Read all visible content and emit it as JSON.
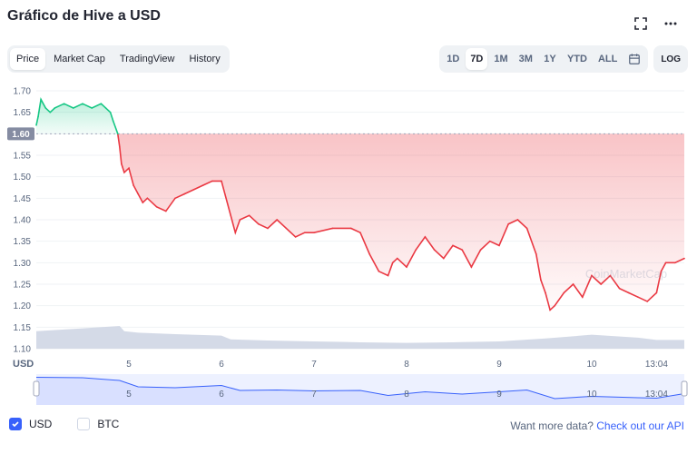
{
  "title": "Gráfico de Hive a USD",
  "header_icons": [
    "fullscreen-icon",
    "more-icon"
  ],
  "tabs": [
    {
      "label": "Price",
      "active": true
    },
    {
      "label": "Market Cap",
      "active": false
    },
    {
      "label": "TradingView",
      "active": false
    },
    {
      "label": "History",
      "active": false
    }
  ],
  "ranges": [
    {
      "label": "1D",
      "active": false
    },
    {
      "label": "7D",
      "active": true
    },
    {
      "label": "1M",
      "active": false
    },
    {
      "label": "3M",
      "active": false
    },
    {
      "label": "1Y",
      "active": false
    },
    {
      "label": "YTD",
      "active": false
    },
    {
      "label": "ALL",
      "active": false
    }
  ],
  "log_label": "LOG",
  "currencies": [
    {
      "label": "USD",
      "checked": true
    },
    {
      "label": "BTC",
      "checked": false
    }
  ],
  "api_note": "Want more data?",
  "api_link": "Check out our API",
  "colors": {
    "up": "#16c784",
    "down": "#ea3943",
    "accent": "#3861fb",
    "volume": "#cfd6e4"
  },
  "chart_data": {
    "type": "line",
    "ylabel": "USD",
    "ylim": [
      1.1,
      1.7
    ],
    "yticks": [
      1.1,
      1.15,
      1.2,
      1.25,
      1.3,
      1.35,
      1.4,
      1.45,
      1.5,
      1.55,
      1.6,
      1.65,
      1.7
    ],
    "xlim": [
      4.0,
      11.0
    ],
    "xticks": [
      {
        "value": 5,
        "label": "5"
      },
      {
        "value": 6,
        "label": "6"
      },
      {
        "value": 7,
        "label": "7"
      },
      {
        "value": 8,
        "label": "8"
      },
      {
        "value": 9,
        "label": "9"
      },
      {
        "value": 10,
        "label": "10"
      },
      {
        "value": 10.7,
        "label": "13:04"
      }
    ],
    "reference_value": 1.6,
    "reference_label": "1.60",
    "watermark": "CoinMarketCap",
    "series": [
      {
        "x": [
          4.0,
          4.02,
          4.05,
          4.1,
          4.15,
          4.2,
          4.3,
          4.4,
          4.5,
          4.6,
          4.7,
          4.75,
          4.8,
          4.83,
          4.88,
          4.9,
          4.92,
          4.95,
          5.0,
          5.05,
          5.1,
          5.15,
          5.2,
          5.3,
          5.4,
          5.5,
          5.6,
          5.7,
          5.8,
          5.9,
          6.0,
          6.1,
          6.15,
          6.2,
          6.3,
          6.4,
          6.5,
          6.6,
          6.7,
          6.8,
          6.9,
          7.0,
          7.2,
          7.4,
          7.5,
          7.6,
          7.7,
          7.8,
          7.85,
          7.9,
          8.0,
          8.1,
          8.2,
          8.3,
          8.4,
          8.5,
          8.6,
          8.7,
          8.8,
          8.9,
          9.0,
          9.1,
          9.2,
          9.3,
          9.4,
          9.45,
          9.5,
          9.55,
          9.6,
          9.7,
          9.8,
          9.9,
          10.0,
          10.1,
          10.2,
          10.3,
          10.4,
          10.5,
          10.6,
          10.7,
          10.75,
          10.8,
          10.9,
          11.0
        ],
        "y": [
          1.62,
          1.64,
          1.68,
          1.66,
          1.65,
          1.66,
          1.67,
          1.66,
          1.67,
          1.66,
          1.67,
          1.66,
          1.65,
          1.63,
          1.6,
          1.57,
          1.53,
          1.51,
          1.52,
          1.48,
          1.46,
          1.44,
          1.45,
          1.43,
          1.42,
          1.45,
          1.46,
          1.47,
          1.48,
          1.49,
          1.49,
          1.41,
          1.37,
          1.4,
          1.41,
          1.39,
          1.38,
          1.4,
          1.38,
          1.36,
          1.37,
          1.37,
          1.38,
          1.38,
          1.37,
          1.32,
          1.28,
          1.27,
          1.3,
          1.31,
          1.29,
          1.33,
          1.36,
          1.33,
          1.31,
          1.34,
          1.33,
          1.29,
          1.33,
          1.35,
          1.34,
          1.39,
          1.4,
          1.38,
          1.32,
          1.26,
          1.23,
          1.19,
          1.2,
          1.23,
          1.25,
          1.22,
          1.27,
          1.25,
          1.27,
          1.24,
          1.23,
          1.22,
          1.21,
          1.23,
          1.28,
          1.3,
          1.3,
          1.31
        ]
      }
    ],
    "volume": {
      "x": [
        4.0,
        4.5,
        4.9,
        4.95,
        5.1,
        5.5,
        6.0,
        6.1,
        6.5,
        7.0,
        7.5,
        8.0,
        8.5,
        9.0,
        9.5,
        10.0,
        10.5,
        10.7,
        11.0
      ],
      "y": [
        0.6,
        0.7,
        0.78,
        0.6,
        0.55,
        0.5,
        0.45,
        0.32,
        0.28,
        0.25,
        0.22,
        0.2,
        0.22,
        0.25,
        0.35,
        0.48,
        0.38,
        0.3,
        0.3
      ]
    },
    "navigator": {
      "x": [
        4.0,
        4.5,
        4.9,
        5.1,
        5.5,
        6.0,
        6.2,
        6.6,
        7.0,
        7.5,
        7.8,
        8.2,
        8.6,
        9.0,
        9.3,
        9.6,
        10.0,
        10.5,
        10.7,
        11.0
      ],
      "y": [
        1.67,
        1.66,
        1.6,
        1.46,
        1.44,
        1.49,
        1.38,
        1.39,
        1.37,
        1.38,
        1.27,
        1.35,
        1.3,
        1.35,
        1.39,
        1.2,
        1.25,
        1.22,
        1.21,
        1.31
      ]
    }
  }
}
